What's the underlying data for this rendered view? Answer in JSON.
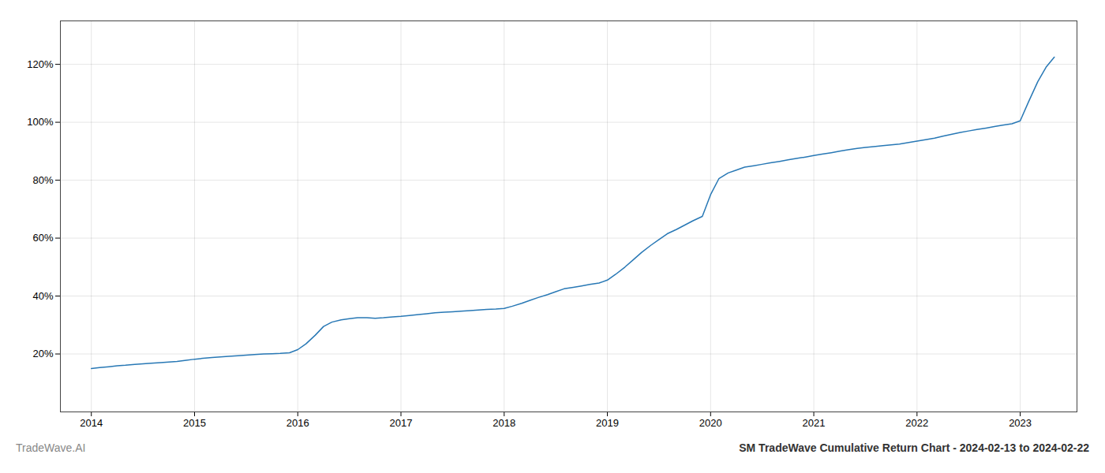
{
  "chart_data": {
    "type": "line",
    "title": "SM TradeWave Cumulative Return Chart - 2024-02-13 to 2024-02-22",
    "annotations": [
      "TradeWave.AI"
    ],
    "color": "#2878b5",
    "grid": true,
    "x": [
      2014.0,
      2014.08,
      2014.17,
      2014.25,
      2014.33,
      2014.42,
      2014.5,
      2014.58,
      2014.67,
      2014.75,
      2014.83,
      2014.92,
      2015.0,
      2015.08,
      2015.17,
      2015.25,
      2015.33,
      2015.42,
      2015.5,
      2015.58,
      2015.67,
      2015.75,
      2015.83,
      2015.92,
      2016.0,
      2016.08,
      2016.17,
      2016.25,
      2016.33,
      2016.42,
      2016.5,
      2016.58,
      2016.67,
      2016.75,
      2016.83,
      2016.92,
      2017.0,
      2017.08,
      2017.17,
      2017.25,
      2017.33,
      2017.42,
      2017.5,
      2017.58,
      2017.67,
      2017.75,
      2017.83,
      2017.92,
      2018.0,
      2018.08,
      2018.17,
      2018.25,
      2018.33,
      2018.42,
      2018.5,
      2018.58,
      2018.67,
      2018.75,
      2018.83,
      2018.92,
      2019.0,
      2019.08,
      2019.17,
      2019.25,
      2019.33,
      2019.42,
      2019.5,
      2019.58,
      2019.67,
      2019.75,
      2019.83,
      2019.92,
      2020.0,
      2020.08,
      2020.17,
      2020.25,
      2020.33,
      2020.42,
      2020.5,
      2020.58,
      2020.67,
      2020.75,
      2020.83,
      2020.92,
      2021.0,
      2021.08,
      2021.17,
      2021.25,
      2021.33,
      2021.42,
      2021.5,
      2021.58,
      2021.67,
      2021.75,
      2021.83,
      2021.92,
      2022.0,
      2022.08,
      2022.17,
      2022.25,
      2022.33,
      2022.42,
      2022.5,
      2022.58,
      2022.67,
      2022.75,
      2022.83,
      2022.92,
      2023.0,
      2023.08,
      2023.17,
      2023.25,
      2023.33
    ],
    "values": [
      15.0,
      15.3,
      15.6,
      15.9,
      16.1,
      16.4,
      16.6,
      16.8,
      17.0,
      17.2,
      17.4,
      17.8,
      18.2,
      18.5,
      18.8,
      19.0,
      19.2,
      19.4,
      19.6,
      19.8,
      20.0,
      20.1,
      20.2,
      20.4,
      21.5,
      23.5,
      26.5,
      29.5,
      31.0,
      31.8,
      32.2,
      32.5,
      32.5,
      32.3,
      32.5,
      32.8,
      33.0,
      33.3,
      33.6,
      33.9,
      34.2,
      34.4,
      34.6,
      34.8,
      35.0,
      35.2,
      35.4,
      35.5,
      35.7,
      36.5,
      37.5,
      38.5,
      39.5,
      40.5,
      41.5,
      42.5,
      43.0,
      43.5,
      44.0,
      44.5,
      45.5,
      47.5,
      50.0,
      52.5,
      55.0,
      57.5,
      59.5,
      61.5,
      63.0,
      64.5,
      66.0,
      67.5,
      75.0,
      80.5,
      82.5,
      83.5,
      84.5,
      85.0,
      85.5,
      86.0,
      86.5,
      87.0,
      87.5,
      88.0,
      88.5,
      89.0,
      89.5,
      90.0,
      90.5,
      91.0,
      91.3,
      91.6,
      91.9,
      92.2,
      92.5,
      93.0,
      93.5,
      94.0,
      94.5,
      95.2,
      95.8,
      96.5,
      97.0,
      97.5,
      98.0,
      98.5,
      99.0,
      99.5,
      100.5,
      107.0,
      114.0,
      119.0,
      122.5
    ],
    "xlim": [
      2013.7,
      2023.55
    ],
    "ylim": [
      0,
      135
    ],
    "xticks": [
      2014,
      2015,
      2016,
      2017,
      2018,
      2019,
      2020,
      2021,
      2022,
      2023
    ],
    "yticks": [
      {
        "value": 20,
        "label": "20%"
      },
      {
        "value": 40,
        "label": "40%"
      },
      {
        "value": 60,
        "label": "60%"
      },
      {
        "value": 80,
        "label": "80%"
      },
      {
        "value": 100,
        "label": "100%"
      },
      {
        "value": 120,
        "label": "120%"
      }
    ]
  }
}
